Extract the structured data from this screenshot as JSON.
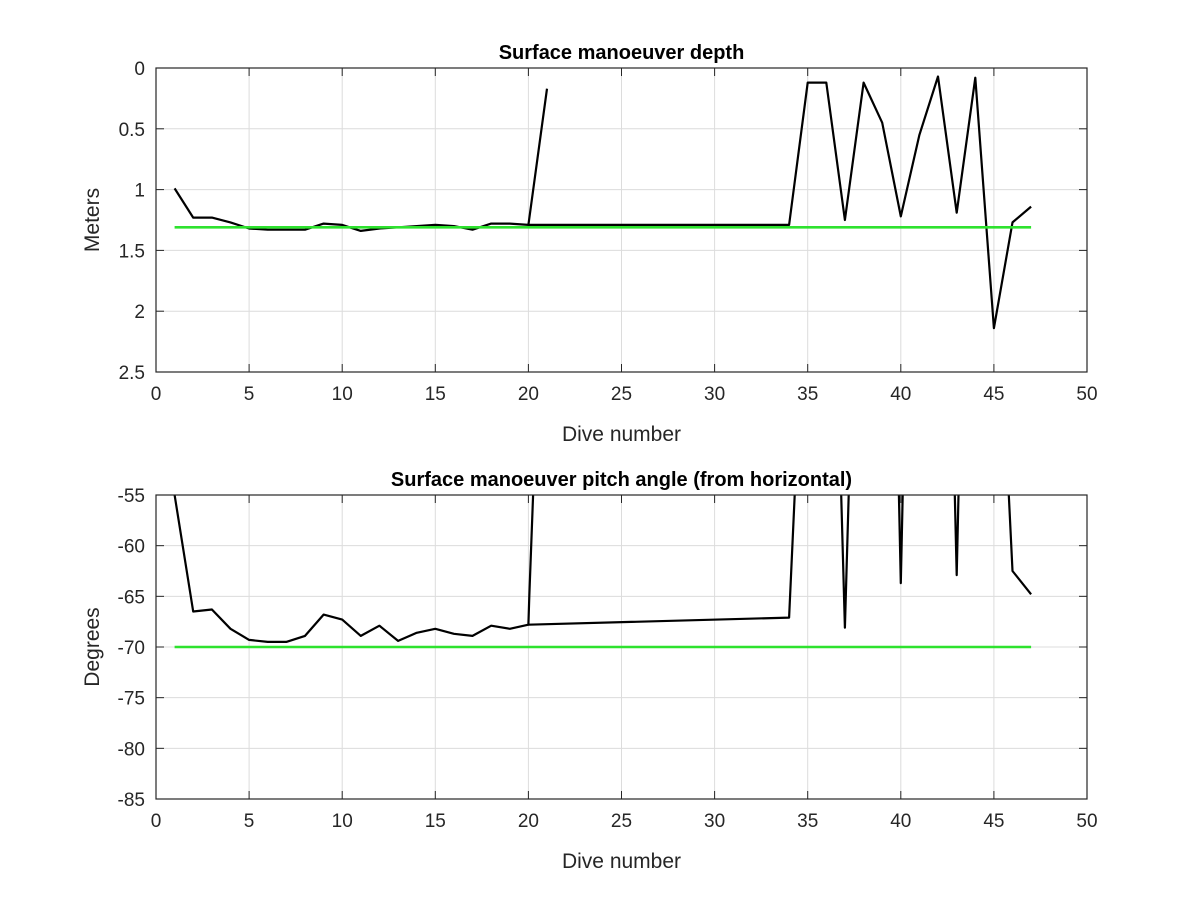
{
  "chart_data": [
    {
      "type": "line",
      "title": "Surface manoeuver depth",
      "xlabel": "Dive number",
      "ylabel": "Meters",
      "xlim": [
        0,
        50
      ],
      "ylim": [
        0,
        2.5
      ],
      "y_reversed": true,
      "grid": true,
      "xticks": [
        "0",
        "5",
        "10",
        "15",
        "20",
        "25",
        "30",
        "35",
        "40",
        "45",
        "50"
      ],
      "yticks": [
        "0",
        "0.5",
        "1",
        "1.5",
        "2",
        "2.5"
      ],
      "series": [
        {
          "color": "#000000",
          "x": [
            1,
            2,
            3,
            4,
            5,
            6,
            7,
            8,
            9,
            10,
            11,
            12,
            13,
            14,
            15,
            16,
            17,
            18,
            19,
            20,
            21
          ],
          "y": [
            0.99,
            1.23,
            1.23,
            1.27,
            1.32,
            1.33,
            1.33,
            1.33,
            1.28,
            1.29,
            1.34,
            1.32,
            1.31,
            1.3,
            1.29,
            1.3,
            1.33,
            1.28,
            1.28,
            1.29,
            0.17
          ]
        },
        {
          "color": "#000000",
          "x": [
            20,
            34,
            35,
            36,
            37,
            38,
            39,
            40,
            41,
            42,
            43,
            44,
            45,
            46,
            47
          ],
          "y": [
            1.29,
            1.29,
            0.12,
            0.12,
            1.25,
            0.12,
            0.45,
            1.22,
            0.55,
            0.07,
            1.19,
            0.08,
            2.14,
            1.27,
            1.14
          ]
        },
        {
          "color": "#2ee22e",
          "x": [
            1,
            47
          ],
          "y": [
            1.31,
            1.31
          ]
        }
      ]
    },
    {
      "type": "line",
      "title": "Surface manoeuver pitch angle (from horizontal)",
      "xlabel": "Dive number",
      "ylabel": "Degrees",
      "xlim": [
        0,
        50
      ],
      "ylim": [
        -85,
        -55
      ],
      "y_reversed": false,
      "grid": true,
      "xticks": [
        "0",
        "5",
        "10",
        "15",
        "20",
        "25",
        "30",
        "35",
        "40",
        "45",
        "50"
      ],
      "yticks": [
        "-55",
        "-60",
        "-65",
        "-70",
        "-75",
        "-80",
        "-85"
      ],
      "series": [
        {
          "color": "#000000",
          "x": [
            1,
            2,
            3,
            4,
            5,
            6,
            7,
            8,
            9,
            10,
            11,
            12,
            13,
            14,
            15,
            16,
            17,
            18,
            19,
            20,
            20.05,
            20.25
          ],
          "y": [
            -55,
            -66.5,
            -66.3,
            -68.2,
            -69.3,
            -69.5,
            -69.5,
            -68.9,
            -66.8,
            -67.3,
            -68.9,
            -67.9,
            -69.4,
            -68.6,
            -68.2,
            -68.7,
            -68.9,
            -67.9,
            -68.2,
            -67.8,
            -65,
            -55
          ]
        },
        {
          "color": "#000000",
          "x": [
            20,
            34,
            34.3
          ],
          "y": [
            -67.8,
            -67.1,
            -55
          ]
        },
        {
          "color": "#000000",
          "x": [
            36.8,
            37,
            37.2
          ],
          "y": [
            -55,
            -68.1,
            -55
          ]
        },
        {
          "color": "#000000",
          "x": [
            39.9,
            40,
            40.1
          ],
          "y": [
            -55,
            -63.7,
            -55
          ]
        },
        {
          "color": "#000000",
          "x": [
            42.9,
            43,
            43.1
          ],
          "y": [
            -55,
            -62.9,
            -55
          ]
        },
        {
          "color": "#000000",
          "x": [
            45.8,
            46,
            47
          ],
          "y": [
            -55,
            -62.5,
            -64.8
          ]
        },
        {
          "color": "#2ee22e",
          "x": [
            1,
            47
          ],
          "y": [
            -70,
            -70
          ]
        }
      ]
    }
  ]
}
